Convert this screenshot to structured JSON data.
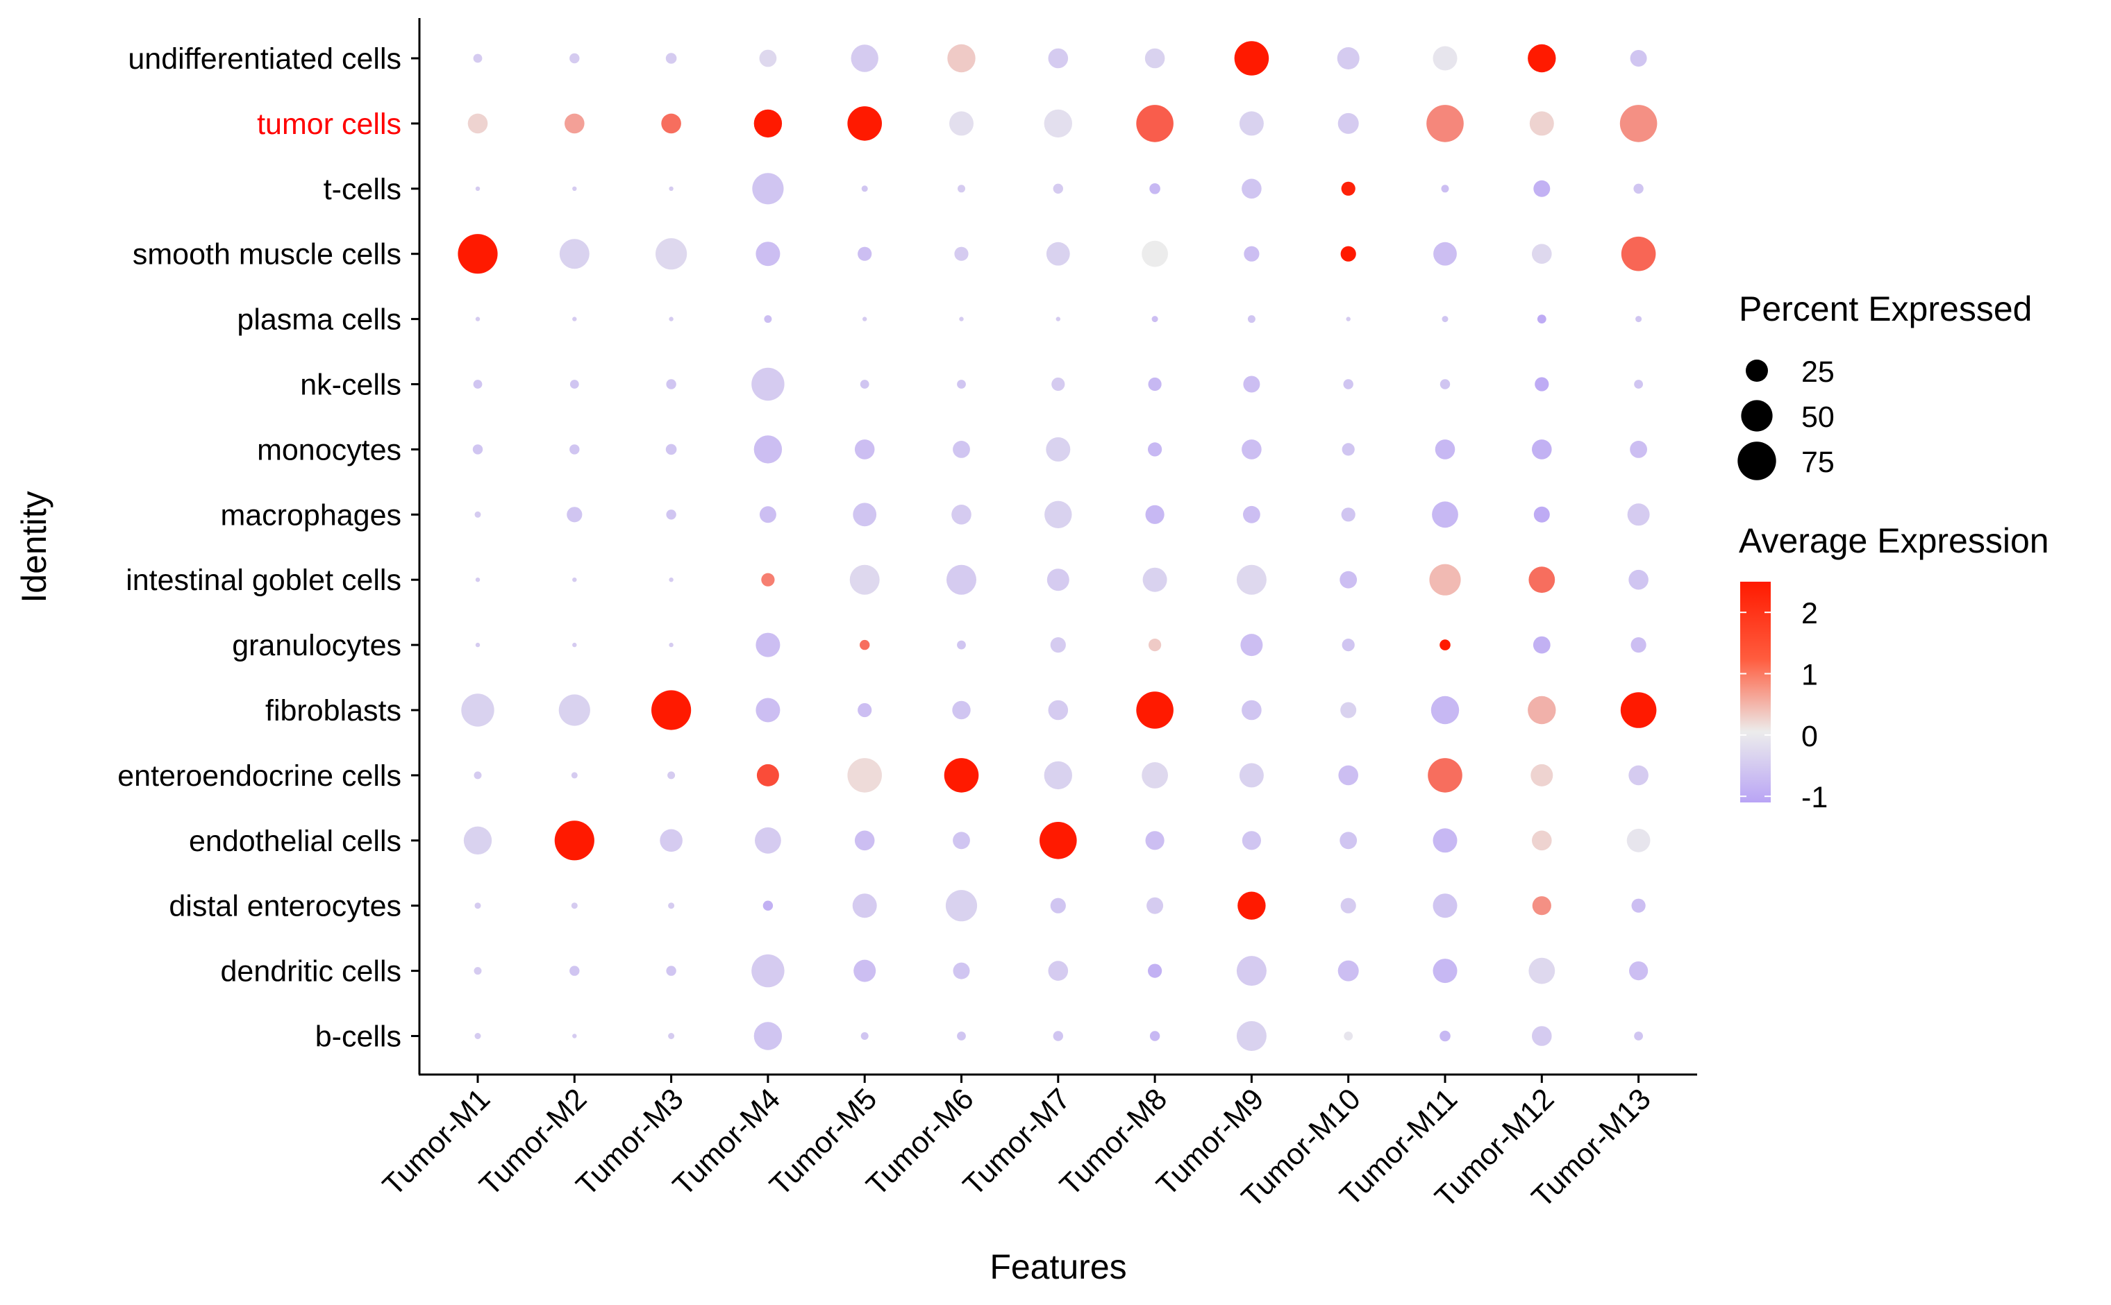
{
  "chart_data": {
    "type": "dotplot",
    "title": "",
    "xlabel": "Features",
    "ylabel": "Identity",
    "features": [
      "Tumor-M1",
      "Tumor-M2",
      "Tumor-M3",
      "Tumor-M4",
      "Tumor-M5",
      "Tumor-M6",
      "Tumor-M7",
      "Tumor-M8",
      "Tumor-M9",
      "Tumor-M10",
      "Tumor-M11",
      "Tumor-M12",
      "Tumor-M13"
    ],
    "identities": [
      "undifferentiated cells",
      "tumor cells",
      "t-cells",
      "smooth muscle cells",
      "plasma cells",
      "nk-cells",
      "monocytes",
      "macrophages",
      "intestinal goblet cells",
      "granulocytes",
      "fibroblasts",
      "enteroendocrine cells",
      "endothelial cells",
      "distal enterocytes",
      "dendritic cells",
      "b-cells"
    ],
    "highlighted_identity": "tumor cells",
    "highlight_color": "#ff0000",
    "size_legend": {
      "title": "Percent Expressed",
      "breaks": [
        25,
        50,
        75
      ],
      "labels": [
        "25",
        "50",
        "75"
      ]
    },
    "color_legend": {
      "title": "Average Expression",
      "breaks": [
        2,
        1,
        0,
        -1
      ],
      "labels": [
        "2",
        "1",
        "0",
        "-1"
      ],
      "range": [
        -1.1,
        2.5
      ],
      "low_color": "#b9a4f5",
      "mid_color": "#ececec",
      "high_color": "#ff1a00"
    },
    "percent": [
      [
        4,
        5,
        6,
        15,
        38,
        40,
        20,
        20,
        60,
        25,
        30,
        40,
        14
      ],
      [
        20,
        20,
        20,
        40,
        60,
        30,
        40,
        70,
        30,
        22,
        70,
        30,
        70
      ],
      [
        1,
        1,
        1,
        50,
        2,
        3,
        5,
        6,
        20,
        10,
        3,
        14,
        5
      ],
      [
        80,
        45,
        50,
        30,
        10,
        10,
        28,
        35,
        12,
        12,
        28,
        20,
        60
      ],
      [
        1,
        1,
        1,
        3,
        1,
        1,
        1,
        2,
        3,
        1,
        2,
        4,
        2
      ],
      [
        4,
        4,
        5,
        55,
        4,
        4,
        9,
        9,
        14,
        5,
        5,
        10,
        4
      ],
      [
        5,
        5,
        6,
        40,
        20,
        15,
        30,
        10,
        20,
        8,
        20,
        20,
        15
      ],
      [
        2,
        12,
        5,
        14,
        28,
        20,
        38,
        18,
        15,
        10,
        35,
        13,
        25
      ],
      [
        1,
        1,
        1,
        9,
        45,
        45,
        25,
        30,
        45,
        15,
        50,
        35,
        20
      ],
      [
        1,
        1,
        1,
        30,
        5,
        4,
        12,
        8,
        25,
        8,
        6,
        15,
        12
      ],
      [
        55,
        50,
        80,
        30,
        10,
        17,
        20,
        70,
        20,
        13,
        40,
        40,
        65
      ],
      [
        3,
        2,
        3,
        25,
        60,
        60,
        40,
        35,
        30,
        20,
        60,
        25,
        20
      ],
      [
        40,
        80,
        26,
        35,
        20,
        15,
        70,
        18,
        18,
        15,
        30,
        20,
        28
      ],
      [
        2,
        2,
        2,
        5,
        30,
        50,
        12,
        14,
        40,
        12,
        30,
        18,
        10
      ],
      [
        3,
        5,
        5,
        55,
        25,
        14,
        20,
        10,
        45,
        22,
        30,
        35,
        18
      ],
      [
        2,
        1,
        2,
        40,
        3,
        4,
        5,
        5,
        45,
        4,
        6,
        20,
        4
      ]
    ],
    "avg_expression": [
      [
        -0.5,
        -0.5,
        -0.5,
        -0.3,
        -0.5,
        0.4,
        -0.5,
        -0.4,
        2.5,
        -0.5,
        -0.1,
        2.5,
        -0.6
      ],
      [
        0.3,
        0.9,
        1.5,
        2.5,
        2.5,
        -0.2,
        -0.2,
        1.7,
        -0.4,
        -0.5,
        1.2,
        0.3,
        1.1
      ],
      [
        -0.5,
        -0.5,
        -0.5,
        -0.6,
        -0.6,
        -0.5,
        -0.5,
        -0.8,
        -0.6,
        2.4,
        -0.7,
        -0.9,
        -0.6
      ],
      [
        2.5,
        -0.4,
        -0.3,
        -0.7,
        -0.7,
        -0.5,
        -0.4,
        0.0,
        -0.7,
        2.5,
        -0.7,
        -0.3,
        1.6
      ],
      [
        -0.5,
        -0.5,
        -0.5,
        -0.7,
        -0.5,
        -0.5,
        -0.5,
        -0.7,
        -0.6,
        -0.5,
        -0.6,
        -1.0,
        -0.6
      ],
      [
        -0.6,
        -0.6,
        -0.6,
        -0.5,
        -0.6,
        -0.6,
        -0.5,
        -0.8,
        -0.7,
        -0.6,
        -0.6,
        -1.0,
        -0.6
      ],
      [
        -0.6,
        -0.6,
        -0.6,
        -0.7,
        -0.7,
        -0.6,
        -0.4,
        -0.8,
        -0.7,
        -0.6,
        -0.8,
        -0.9,
        -0.7
      ],
      [
        -0.5,
        -0.6,
        -0.6,
        -0.7,
        -0.6,
        -0.5,
        -0.4,
        -0.8,
        -0.7,
        -0.6,
        -0.8,
        -1.0,
        -0.5
      ],
      [
        -0.5,
        -0.5,
        -0.5,
        1.3,
        -0.3,
        -0.5,
        -0.5,
        -0.4,
        -0.3,
        -0.7,
        0.6,
        1.5,
        -0.6
      ],
      [
        -0.5,
        -0.5,
        -0.5,
        -0.7,
        1.5,
        -0.6,
        -0.5,
        0.4,
        -0.7,
        -0.6,
        2.5,
        -0.9,
        -0.7
      ],
      [
        -0.4,
        -0.4,
        2.5,
        -0.7,
        -0.7,
        -0.6,
        -0.5,
        2.5,
        -0.6,
        -0.4,
        -0.8,
        0.7,
        2.5
      ],
      [
        -0.5,
        -0.5,
        -0.5,
        1.9,
        0.2,
        2.5,
        -0.4,
        -0.3,
        -0.4,
        -0.7,
        1.5,
        0.3,
        -0.5
      ],
      [
        -0.4,
        2.5,
        -0.5,
        -0.5,
        -0.7,
        -0.6,
        2.5,
        -0.7,
        -0.6,
        -0.6,
        -0.8,
        0.3,
        -0.1
      ],
      [
        -0.5,
        -0.5,
        -0.5,
        -0.9,
        -0.5,
        -0.4,
        -0.6,
        -0.5,
        2.5,
        -0.5,
        -0.6,
        1.1,
        -0.7
      ],
      [
        -0.5,
        -0.6,
        -0.6,
        -0.5,
        -0.7,
        -0.6,
        -0.5,
        -0.9,
        -0.5,
        -0.7,
        -0.8,
        -0.3,
        -0.7
      ],
      [
        -0.5,
        -0.5,
        -0.5,
        -0.6,
        -0.6,
        -0.6,
        -0.6,
        -0.8,
        -0.4,
        -0.1,
        -0.8,
        -0.5,
        -0.6
      ]
    ]
  }
}
